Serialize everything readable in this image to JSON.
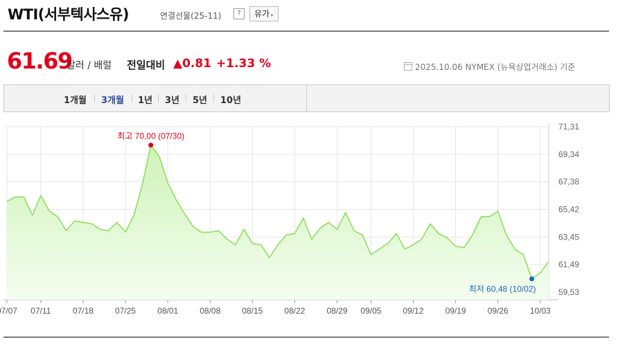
{
  "header": {
    "title": "WTI(서부텍사스유)",
    "contract": "연결선물(25-11)",
    "help_label": "?",
    "related_label": "유가",
    "related_arrow": "▸"
  },
  "quote": {
    "price": "61.69",
    "unit": "달러 / 배럴",
    "compare_label": "전일대비",
    "change": "▲0.81",
    "change_pct": "+1.33 %",
    "as_of": "2025.10.06  NYMEX (뉴욕상업거래소) 기준"
  },
  "tabs": [
    {
      "label": "1개월",
      "active": false
    },
    {
      "label": "3개월",
      "active": true
    },
    {
      "label": "1년",
      "active": false
    },
    {
      "label": "3년",
      "active": false
    },
    {
      "label": "5년",
      "active": false
    },
    {
      "label": "10년",
      "active": false
    }
  ],
  "colors": {
    "line": "#8ee05c",
    "area_top": "#cff3b8",
    "area_bottom": "#f4fdf0",
    "high": "#e3001b",
    "low": "#1f66c7",
    "grid": "#e6e6e6"
  },
  "chart_data": {
    "type": "area",
    "ylim": [
      59.53,
      71.31
    ],
    "y_ticks": [
      "71,31",
      "69,34",
      "67,38",
      "65,42",
      "63,45",
      "61,49",
      "59,53"
    ],
    "x_ticks": [
      {
        "label": "07/07",
        "index": 0
      },
      {
        "label": "07/11",
        "index": 4
      },
      {
        "label": "07/18",
        "index": 9
      },
      {
        "label": "07/25",
        "index": 14
      },
      {
        "label": "08/01",
        "index": 19
      },
      {
        "label": "08/08",
        "index": 24
      },
      {
        "label": "08/15",
        "index": 29
      },
      {
        "label": "08/22",
        "index": 34
      },
      {
        "label": "08/29",
        "index": 39
      },
      {
        "label": "09/05",
        "index": 43
      },
      {
        "label": "09/12",
        "index": 48
      },
      {
        "label": "09/19",
        "index": 53
      },
      {
        "label": "09/26",
        "index": 58
      },
      {
        "label": "10/03",
        "index": 63
      }
    ],
    "values": [
      66.0,
      66.3,
      66.3,
      65.0,
      66.4,
      65.3,
      64.9,
      63.9,
      64.6,
      64.5,
      64.4,
      64.0,
      63.9,
      64.5,
      63.8,
      65.0,
      67.2,
      70.0,
      69.2,
      67.3,
      66.1,
      65.1,
      64.2,
      63.8,
      63.8,
      63.9,
      63.3,
      62.9,
      64.0,
      63.0,
      62.9,
      62.0,
      62.9,
      63.6,
      63.7,
      64.8,
      63.3,
      64.1,
      64.5,
      64.0,
      65.2,
      63.9,
      63.6,
      62.2,
      62.6,
      63.0,
      63.7,
      62.6,
      62.9,
      63.3,
      64.4,
      63.7,
      63.4,
      62.8,
      62.7,
      63.6,
      64.9,
      64.9,
      65.3,
      63.6,
      62.6,
      62.2,
      60.48,
      60.9,
      61.69
    ],
    "high": {
      "label": "최고  70,00 (07/30)",
      "index": 17,
      "value": 70.0
    },
    "low": {
      "label": "최저  60,48 (10/02)",
      "index": 62,
      "value": 60.48
    }
  }
}
